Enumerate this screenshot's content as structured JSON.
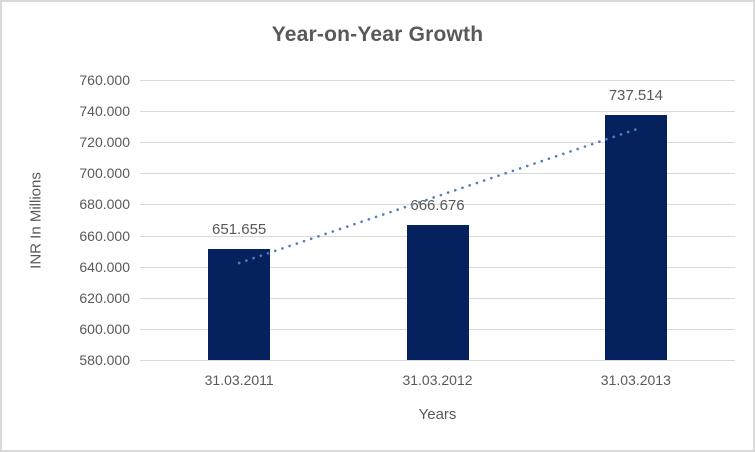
{
  "chart_data": {
    "type": "bar",
    "title": "Year-on-Year Growth",
    "xlabel": "Years",
    "ylabel": "INR In Millions",
    "categories": [
      "31.03.2011",
      "31.03.2012",
      "31.03.2013"
    ],
    "values": [
      651.655,
      666.676,
      737.514
    ],
    "value_labels": [
      "651.655",
      "666.676",
      "737.514"
    ],
    "ylim": [
      580,
      760
    ],
    "ytick_step": 20,
    "ytick_labels": [
      "580.000",
      "600.000",
      "620.000",
      "640.000",
      "660.000",
      "680.000",
      "700.000",
      "720.000",
      "740.000",
      "760.000"
    ],
    "grid": true,
    "legend": "none",
    "trendline": {
      "kind": "linear",
      "style": "dotted"
    },
    "colors": {
      "bar": "#05215e",
      "trendline": "#4e81bd",
      "gridline": "#d9d9d9",
      "text": "#595959",
      "frame_border": "#d9d9d9",
      "background": "#ffffff"
    }
  }
}
